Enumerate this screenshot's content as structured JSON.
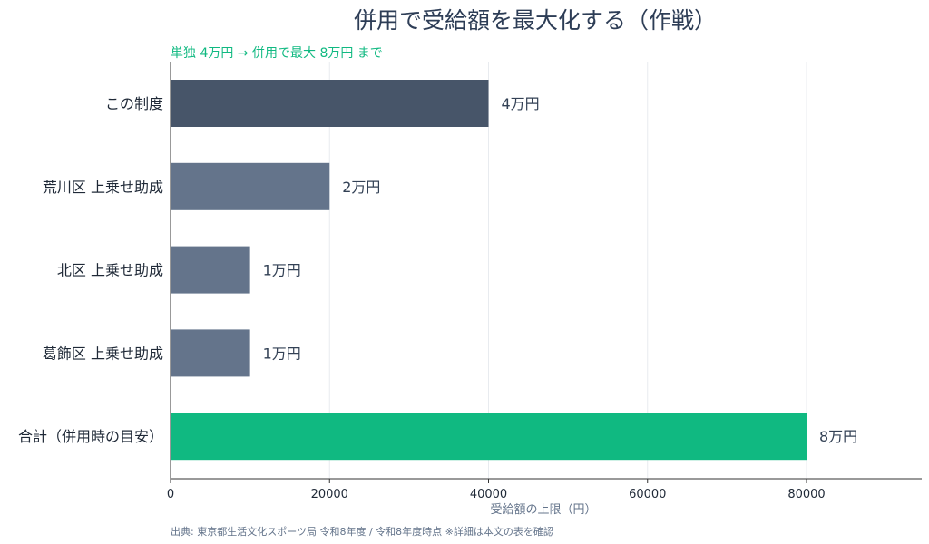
{
  "title": "併用で受給額を最大化する（作戦）",
  "subtitle": "単独 4万円 → 併用で最大 8万円 まで",
  "source": "出典: 東京都生活文化スポーツ局 令和8年度 / 令和8年度時点 ※詳細は本文の表を確認",
  "chart_data": {
    "type": "bar",
    "orientation": "horizontal",
    "categories": [
      "この制度",
      "荒川区 上乗せ助成",
      "北区 上乗せ助成",
      "葛飾区 上乗せ助成",
      "合計（併用時の目安）"
    ],
    "values": [
      40000,
      20000,
      10000,
      10000,
      80000
    ],
    "data_labels": [
      "4万円",
      "2万円",
      "1万円",
      "1万円",
      "8万円"
    ],
    "bar_colors": [
      "#475569",
      "#64748b",
      "#64748b",
      "#64748b",
      "#10b981"
    ],
    "xlabel": "受給額の上限（円）",
    "ylabel": "",
    "xlim": [
      0,
      92000
    ],
    "xticks": [
      0,
      20000,
      40000,
      60000,
      80000
    ],
    "grid": "vertical",
    "legend": "none"
  }
}
